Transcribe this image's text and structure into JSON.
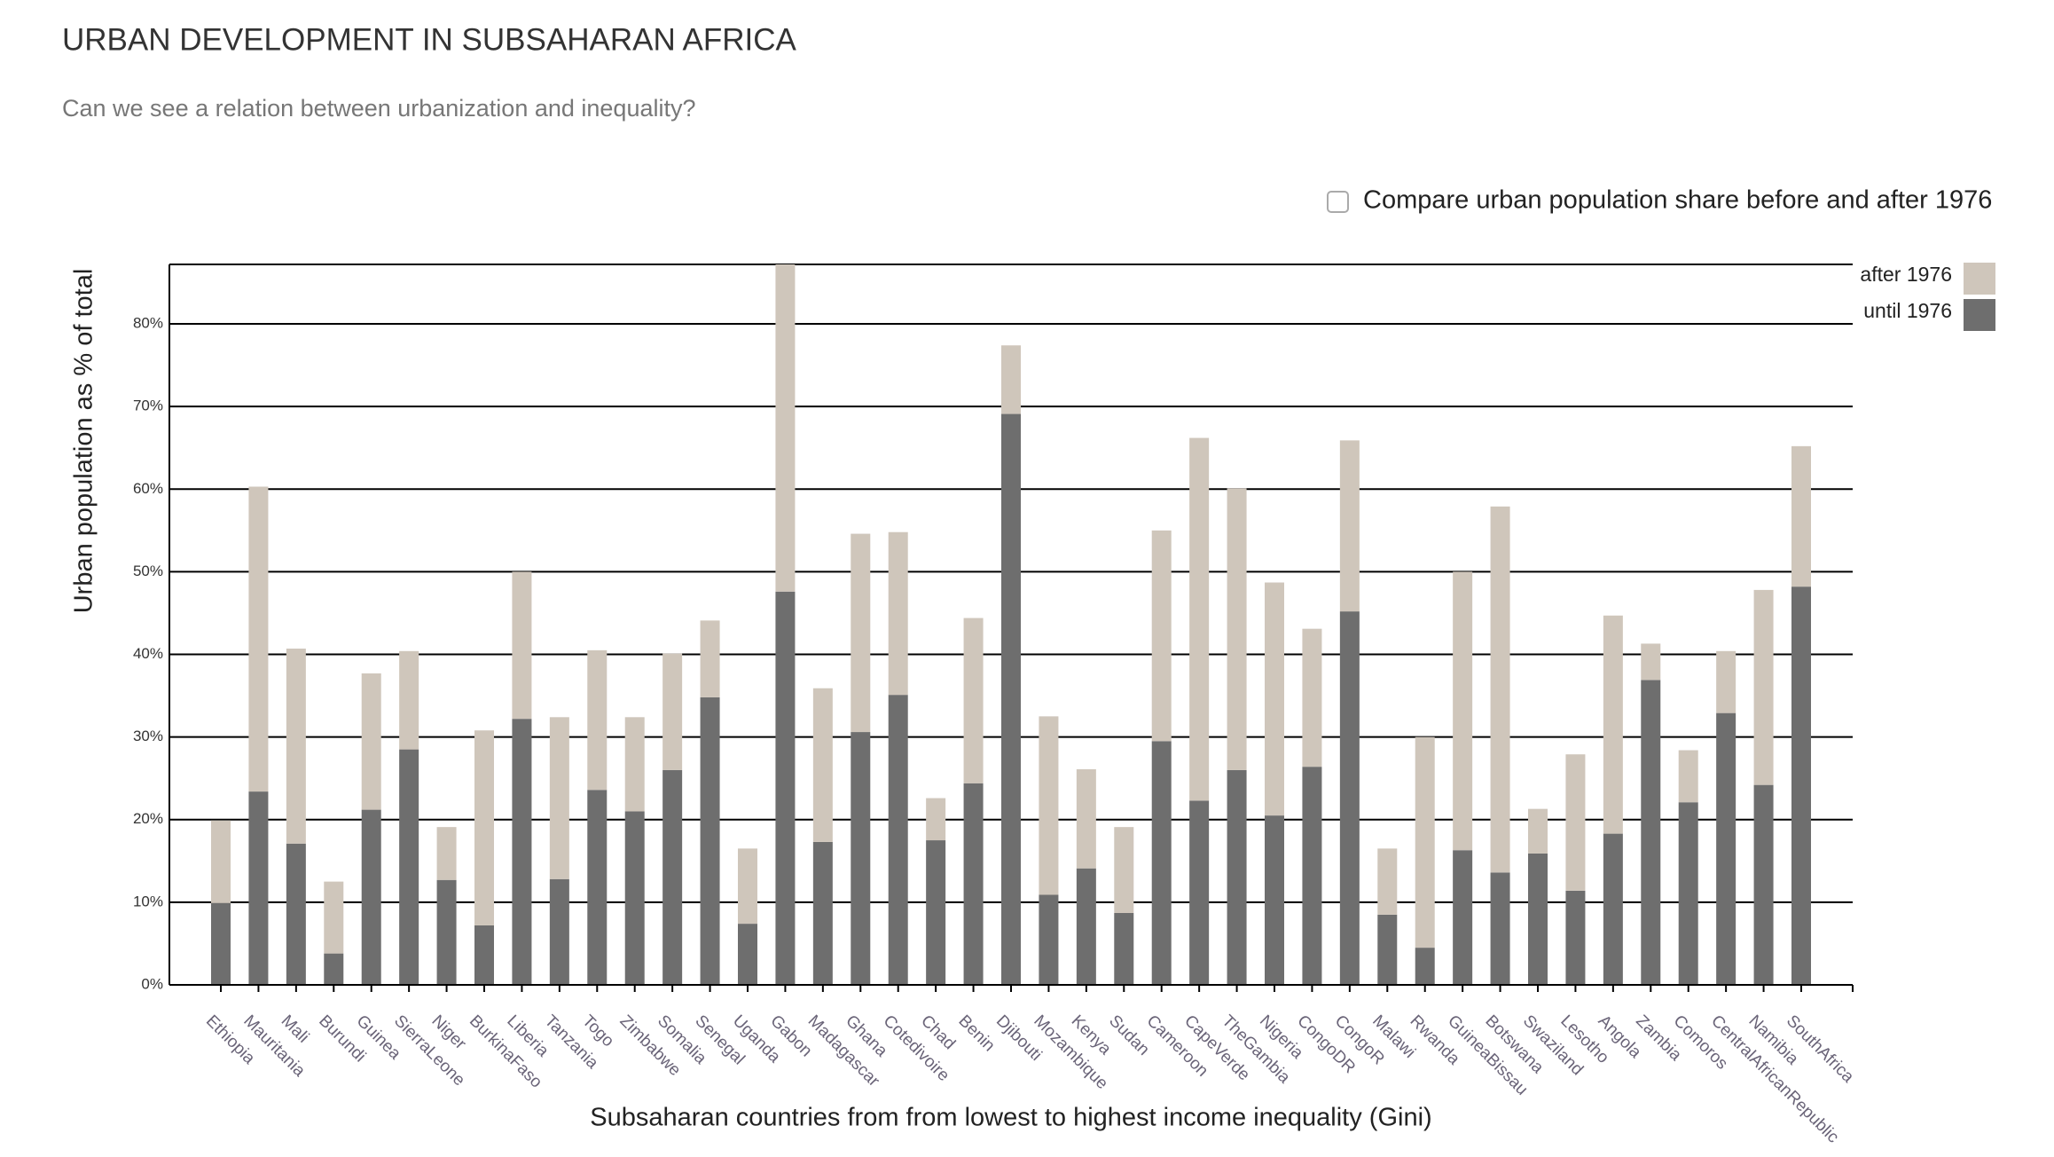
{
  "chart_data": {
    "type": "stacked_bar",
    "title": "URBAN DEVELOPMENT IN SUBSAHARAN AFRICA",
    "subtitle": "Can we see a relation between urbanization and inequality?",
    "checkbox_label": "Compare urban population share before and after 1976",
    "y_label": "Urban population as % of total",
    "x_label": "Subsaharan countries from from lowest to highest income inequality (Gini)",
    "categories": [
      "Ethiopia",
      "Mauritania",
      "Mali",
      "Burundi",
      "Guinea",
      "SierraLeone",
      "Niger",
      "BurkinaFaso",
      "Liberia",
      "Tanzania",
      "Togo",
      "Zimbabwe",
      "Somalia",
      "Senegal",
      "Uganda",
      "Gabon",
      "Madagascar",
      "Ghana",
      "Cotedivoire",
      "Chad",
      "Benin",
      "Djibouti",
      "Mozambique",
      "Kenya",
      "Sudan",
      "Cameroon",
      "CapeVerde",
      "TheGambia",
      "Nigeria",
      "CongoDR",
      "CongoR",
      "Malawi",
      "Rwanda",
      "GuineaBissau",
      "Botswana",
      "Swaziland",
      "Lesotho",
      "Angola",
      "Zambia",
      "Comoros",
      "CentralAfricanRepublic",
      "Namibia",
      "SouthAfrica"
    ],
    "series": [
      {
        "name": "until 1976",
        "color": "#6e6e6e",
        "values": [
          9.9,
          23.4,
          17.1,
          3.8,
          21.2,
          28.5,
          12.7,
          7.2,
          32.2,
          12.8,
          23.6,
          21.0,
          26.0,
          34.8,
          7.4,
          47.6,
          17.3,
          30.6,
          35.1,
          17.5,
          24.4,
          69.1,
          10.9,
          14.1,
          8.7,
          29.5,
          22.3,
          26.0,
          20.5,
          26.4,
          45.2,
          8.5,
          4.5,
          16.3,
          13.6,
          15.9,
          11.4,
          18.3,
          36.9,
          22.1,
          32.9,
          24.2,
          48.2
        ]
      },
      {
        "name": "after 1976",
        "color": "#cfc6bb",
        "values": [
          10.0,
          36.9,
          23.6,
          8.7,
          16.5,
          11.9,
          6.4,
          23.6,
          17.8,
          19.6,
          16.9,
          11.4,
          14.1,
          9.3,
          9.1,
          39.6,
          18.6,
          24.0,
          19.7,
          5.1,
          20.0,
          8.3,
          21.6,
          12.0,
          10.4,
          25.5,
          43.9,
          34.1,
          28.2,
          16.7,
          20.7,
          8.0,
          25.5,
          33.7,
          44.3,
          5.4,
          16.5,
          26.4,
          4.4,
          6.3,
          7.5,
          23.6,
          17.0
        ]
      }
    ],
    "ylim": [
      0,
      87.2
    ],
    "yticks": [
      {
        "value": 0,
        "label": "0%"
      },
      {
        "value": 10,
        "label": "10%"
      },
      {
        "value": 20,
        "label": "20%"
      },
      {
        "value": 30,
        "label": "30%"
      },
      {
        "value": 40,
        "label": "40%"
      },
      {
        "value": 50,
        "label": "50%"
      },
      {
        "value": 60,
        "label": "60%"
      },
      {
        "value": 70,
        "label": "70%"
      },
      {
        "value": 80,
        "label": "80%"
      }
    ],
    "grid": true,
    "legend": "top-right"
  }
}
